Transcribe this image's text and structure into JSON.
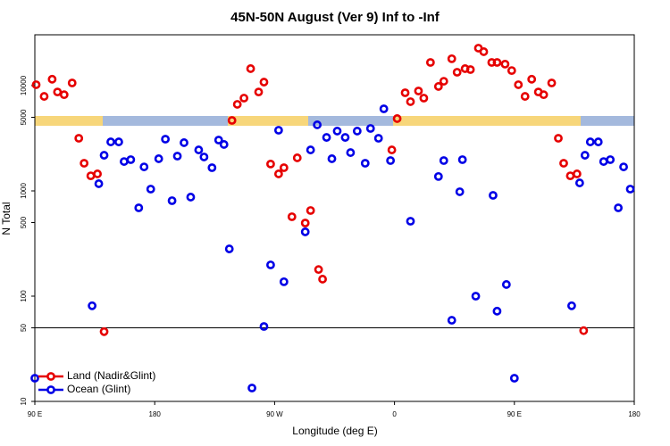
{
  "chart_data": {
    "type": "scatter",
    "title": "45N-50N August (Ver 9)   Inf to -Inf",
    "x_label": "Longitude (deg E)",
    "y_label": "N Total",
    "xlim": [
      90,
      540
    ],
    "xticks": [
      {
        "value": 90,
        "label": "90 E"
      },
      180,
      {
        "value": 270,
        "label": "90 W"
      },
      {
        "value": 360,
        "label": "0"
      },
      {
        "value": 450,
        "label": "90 E"
      },
      {
        "value": 540,
        "label": "180"
      }
    ],
    "ylim": [
      10,
      30400
    ],
    "yticks": [
      10,
      50,
      100,
      500,
      1000,
      5000,
      10000
    ],
    "log_y": true,
    "reference_line": 50,
    "legend": "bottom-left",
    "series": [
      {
        "name": "Land (Nadir&Glint)",
        "color": "#e60000",
        "x": [
          91,
          97,
          103,
          107,
          112,
          118,
          123,
          127,
          132,
          137,
          142,
          238,
          242,
          247,
          252,
          258,
          262,
          267,
          273,
          277,
          283,
          287,
          293,
          297,
          303,
          306,
          358,
          362,
          368,
          372,
          378,
          382,
          387,
          393,
          397,
          403,
          407,
          413,
          417,
          423,
          427,
          433,
          437,
          443,
          448,
          453,
          458,
          463,
          468,
          472,
          478,
          483,
          487,
          492,
          497,
          502
        ],
        "values": [
          10200,
          7900,
          11500,
          8700,
          8200,
          10600,
          3160,
          1830,
          1390,
          1450,
          46,
          4670,
          6640,
          7610,
          14500,
          8700,
          10800,
          1800,
          1450,
          1660,
          568,
          2060,
          495,
          651,
          179,
          145,
          2450,
          4860,
          8550,
          7040,
          8890,
          7610,
          16600,
          9820,
          11000,
          18000,
          13400,
          14500,
          14200,
          22700,
          21000,
          16600,
          16600,
          16000,
          13900,
          10200,
          7900,
          11500,
          8700,
          8200,
          10600,
          3160,
          1830,
          1390,
          1450,
          47
        ]
      },
      {
        "name": "Ocean (Glint)",
        "color": "#0000e6",
        "x": [
          90,
          133,
          138,
          142,
          147,
          153,
          157,
          162,
          168,
          172,
          177,
          183,
          188,
          193,
          197,
          202,
          207,
          213,
          217,
          223,
          228,
          232,
          236,
          253,
          262,
          267,
          273,
          277,
          293,
          297,
          302,
          309,
          313,
          317,
          323,
          327,
          332,
          338,
          342,
          348,
          352,
          357,
          372,
          393,
          397,
          403,
          409,
          411,
          421,
          434,
          437,
          444,
          450,
          493,
          499,
          503,
          507,
          513,
          517,
          522,
          528,
          532,
          537
        ],
        "values": [
          16.6,
          81,
          1170,
          2180,
          2920,
          2920,
          1900,
          1980,
          690,
          1690,
          1040,
          2020,
          3100,
          807,
          2140,
          2870,
          873,
          2450,
          2100,
          1660,
          3040,
          2760,
          281,
          13.4,
          51.5,
          198,
          3770,
          137,
          408,
          2450,
          4240,
          3220,
          2020,
          3700,
          3220,
          2310,
          3700,
          1830,
          3920,
          3160,
          6020,
          1940,
          515,
          1370,
          1940,
          59,
          981,
          1980,
          100,
          907,
          72,
          129,
          16.6,
          81,
          1190,
          2180,
          2920,
          2920,
          1900,
          1980,
          690,
          1690,
          1040
        ]
      }
    ]
  }
}
